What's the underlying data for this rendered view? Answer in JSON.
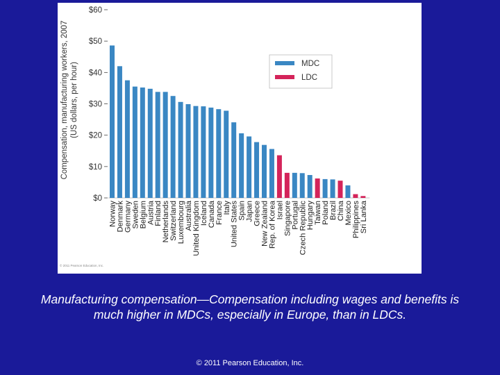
{
  "chart_data": {
    "type": "bar",
    "ylabel": "Compensation, manufacturing workers, 2007\n(US dollars, per hour)",
    "ylim": [
      0,
      60
    ],
    "yticks": [
      0,
      10,
      20,
      30,
      40,
      50,
      60
    ],
    "ytick_labels": [
      "$0",
      "$10",
      "$20",
      "$30",
      "$40",
      "$50",
      "$60"
    ],
    "categories": [
      "Norway",
      "Denmark",
      "Germany",
      "Sweden",
      "Belgium",
      "Austria",
      "Finland",
      "Netherlands",
      "Switzerland",
      "Luxembourg",
      "Australia",
      "United Kingdom",
      "Iceland",
      "Canada",
      "France",
      "Italy",
      "United States",
      "Spain",
      "Japan",
      "Greece",
      "New Zealand",
      "Rep. of Korea",
      "Israel",
      "Singapore",
      "Portugal",
      "Czech Republic",
      "Hungary",
      "Taiwan",
      "Poland",
      "Brazil",
      "China",
      "Mexico",
      "Philippines",
      "Sri Lanka"
    ],
    "values": [
      48.6,
      42.0,
      37.5,
      35.5,
      35.2,
      34.8,
      33.8,
      33.8,
      32.5,
      30.6,
      29.9,
      29.3,
      29.2,
      28.8,
      28.3,
      27.8,
      24.1,
      20.6,
      19.6,
      17.8,
      16.9,
      15.6,
      13.6,
      8.0,
      8.0,
      7.9,
      7.3,
      6.2,
      6.0,
      5.9,
      5.5,
      4.0,
      1.2,
      0.6
    ],
    "groups": [
      "MDC",
      "MDC",
      "MDC",
      "MDC",
      "MDC",
      "MDC",
      "MDC",
      "MDC",
      "MDC",
      "MDC",
      "MDC",
      "MDC",
      "MDC",
      "MDC",
      "MDC",
      "MDC",
      "MDC",
      "MDC",
      "MDC",
      "MDC",
      "MDC",
      "MDC",
      "LDC",
      "LDC",
      "MDC",
      "MDC",
      "MDC",
      "LDC",
      "MDC",
      "MDC",
      "LDC",
      "MDC",
      "LDC",
      "LDC"
    ],
    "legend": [
      {
        "name": "MDC",
        "color": "#3a87c3"
      },
      {
        "name": "LDC",
        "color": "#d4245a"
      }
    ],
    "legend_position": "top-right",
    "source_note": "© 2011 Pearson Education, Inc."
  },
  "caption": {
    "line1": "Manufacturing compensation—Compensation including wages and benefits is",
    "line2": "much higher in MDCs, especially in Europe, than in LDCs."
  },
  "footer": {
    "copyright": "© 2011 Pearson Education, Inc."
  }
}
